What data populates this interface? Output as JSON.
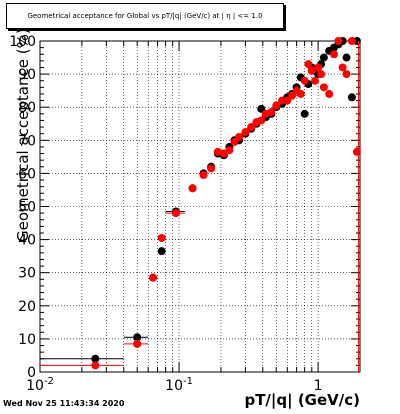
{
  "chart_data": {
    "type": "scatter",
    "title": "Geometrical acceptance for Global vs pT/|q| (GeV/c) at | η | <= 1.0",
    "xlabel": "pT/|q| (GeV/c)",
    "ylabel": "Geometrical acceptance (%)",
    "x_scale": "log",
    "xlim": [
      0.01,
      2.0
    ],
    "ylim": [
      0,
      100
    ],
    "y_ticks": [
      0,
      10,
      20,
      30,
      40,
      50,
      60,
      70,
      80,
      90,
      100
    ],
    "x_ticks": [
      {
        "value": 0.01,
        "label": "10^-2"
      },
      {
        "value": 0.1,
        "label": "10^-1"
      },
      {
        "value": 1,
        "label": "1"
      }
    ],
    "grid": true,
    "series": [
      {
        "color": "#000000",
        "points": [
          {
            "x": 0.025,
            "y": 4,
            "xerr": [
              0.01,
              0.04
            ]
          },
          {
            "x": 0.05,
            "y": 10.5,
            "xerr": [
              0.04,
              0.06
            ]
          },
          {
            "x": 0.065,
            "y": 28.5
          },
          {
            "x": 0.075,
            "y": 36.5
          },
          {
            "x": 0.095,
            "y": 48.5,
            "xerr": [
              0.08,
              0.11
            ]
          },
          {
            "x": 0.125,
            "y": 55.5
          },
          {
            "x": 0.15,
            "y": 60
          },
          {
            "x": 0.17,
            "y": 62
          },
          {
            "x": 0.19,
            "y": 66
          },
          {
            "x": 0.21,
            "y": 65.5
          },
          {
            "x": 0.23,
            "y": 68
          },
          {
            "x": 0.25,
            "y": 70
          },
          {
            "x": 0.27,
            "y": 70
          },
          {
            "x": 0.3,
            "y": 72
          },
          {
            "x": 0.33,
            "y": 73.5
          },
          {
            "x": 0.36,
            "y": 75
          },
          {
            "x": 0.39,
            "y": 79.5
          },
          {
            "x": 0.42,
            "y": 77
          },
          {
            "x": 0.46,
            "y": 78
          },
          {
            "x": 0.5,
            "y": 80
          },
          {
            "x": 0.55,
            "y": 81
          },
          {
            "x": 0.6,
            "y": 83
          },
          {
            "x": 0.65,
            "y": 84
          },
          {
            "x": 0.7,
            "y": 86
          },
          {
            "x": 0.75,
            "y": 89
          },
          {
            "x": 0.8,
            "y": 78
          },
          {
            "x": 0.85,
            "y": 87
          },
          {
            "x": 0.9,
            "y": 92
          },
          {
            "x": 0.95,
            "y": 91
          },
          {
            "x": 1.0,
            "y": 90
          },
          {
            "x": 1.05,
            "y": 93
          },
          {
            "x": 1.1,
            "y": 95
          },
          {
            "x": 1.2,
            "y": 97
          },
          {
            "x": 1.3,
            "y": 98
          },
          {
            "x": 1.4,
            "y": 99
          },
          {
            "x": 1.5,
            "y": 100
          },
          {
            "x": 1.6,
            "y": 95
          },
          {
            "x": 1.75,
            "y": 83
          },
          {
            "x": 1.9,
            "y": 100
          }
        ]
      },
      {
        "color": "#ff0000",
        "points": [
          {
            "x": 0.025,
            "y": 2,
            "xerr": [
              0.01,
              0.04
            ]
          },
          {
            "x": 0.05,
            "y": 8.5,
            "xerr": [
              0.04,
              0.06
            ]
          },
          {
            "x": 0.065,
            "y": 28.5
          },
          {
            "x": 0.075,
            "y": 40.5
          },
          {
            "x": 0.095,
            "y": 48,
            "xerr": [
              0.08,
              0.11
            ]
          },
          {
            "x": 0.125,
            "y": 55.5
          },
          {
            "x": 0.15,
            "y": 59.5
          },
          {
            "x": 0.17,
            "y": 61.5
          },
          {
            "x": 0.19,
            "y": 66.5
          },
          {
            "x": 0.21,
            "y": 66
          },
          {
            "x": 0.23,
            "y": 67
          },
          {
            "x": 0.25,
            "y": 69.5
          },
          {
            "x": 0.27,
            "y": 71
          },
          {
            "x": 0.3,
            "y": 72.5
          },
          {
            "x": 0.33,
            "y": 74
          },
          {
            "x": 0.36,
            "y": 75.5
          },
          {
            "x": 0.39,
            "y": 76
          },
          {
            "x": 0.42,
            "y": 78
          },
          {
            "x": 0.46,
            "y": 78.5
          },
          {
            "x": 0.5,
            "y": 80.5
          },
          {
            "x": 0.55,
            "y": 82
          },
          {
            "x": 0.6,
            "y": 82
          },
          {
            "x": 0.65,
            "y": 83.5
          },
          {
            "x": 0.7,
            "y": 85
          },
          {
            "x": 0.75,
            "y": 84
          },
          {
            "x": 0.8,
            "y": 88
          },
          {
            "x": 0.85,
            "y": 93
          },
          {
            "x": 0.9,
            "y": 91
          },
          {
            "x": 0.95,
            "y": 88
          },
          {
            "x": 1.0,
            "y": 92
          },
          {
            "x": 1.05,
            "y": 90
          },
          {
            "x": 1.1,
            "y": 86
          },
          {
            "x": 1.2,
            "y": 84
          },
          {
            "x": 1.3,
            "y": 96
          },
          {
            "x": 1.4,
            "y": 100
          },
          {
            "x": 1.5,
            "y": 92
          },
          {
            "x": 1.6,
            "y": 90
          },
          {
            "x": 1.75,
            "y": 100
          },
          {
            "x": 1.9,
            "y": 66.5
          }
        ]
      }
    ]
  },
  "footer": {
    "datestamp": "Wed Nov 25 11:43:34 2020"
  }
}
